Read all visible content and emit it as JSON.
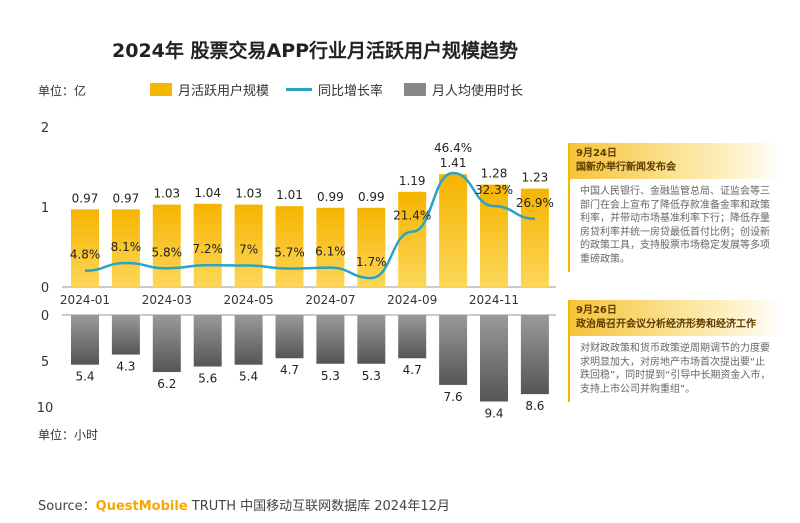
{
  "title": "2024年 股票交易APP行业月活跃用户规模趋势",
  "unit_top": "单位：亿",
  "unit_bottom": "单位：小时",
  "legend": [
    "月活跃用户规模",
    "同比增长率",
    "月人均使用时长"
  ],
  "notes": [
    {
      "date": "9月24日",
      "headline": "国新办举行新闻发布会",
      "body": "中国人民银行、金融监管总局、证监会等三部门在会上宣布了降低存款准备金率和政策利率，并带动市场基准利率下行；降低存量房贷利率并统一房贷最低首付比例；创设新的政策工具，支持股票市场稳定发展等多项重磅政策。"
    },
    {
      "date": "9月26日",
      "headline": "政治局召开会议分析经济形势和经济工作",
      "body": "对财政政策和货币政策逆周期调节的力度要求明显加大，对房地产市场首次提出要“止跌回稳”，同时提到“引导中长期资金入市，支持上市公司并购重组”。"
    }
  ],
  "source": {
    "label": "Source：",
    "brand": "QuestMobile",
    "rest": " TRUTH 中国移动互联网数据库 2024年12月"
  },
  "colors": {
    "mau": "#f5b800",
    "growth": "#2aa3c4",
    "time": "#777777"
  },
  "chart_data": {
    "type": "bar+line",
    "categories": [
      "2024-01",
      "2024-02",
      "2024-03",
      "2024-04",
      "2024-05",
      "2024-06",
      "2024-07",
      "2024-08",
      "2024-09",
      "2024-10",
      "2024-11",
      "2024-12"
    ],
    "x_tick_labels": [
      "2024-01",
      "2024-03",
      "2024-05",
      "2024-07",
      "2024-09",
      "2024-11"
    ],
    "series": [
      {
        "name": "月活跃用户规模",
        "type": "bar",
        "unit": "亿",
        "values": [
          0.97,
          0.97,
          1.03,
          1.04,
          1.03,
          1.01,
          0.99,
          0.99,
          1.19,
          1.41,
          1.28,
          1.23
        ]
      },
      {
        "name": "同比增长率",
        "type": "line",
        "unit": "%",
        "values": [
          4.8,
          8.1,
          5.8,
          7.2,
          7.0,
          5.7,
          6.1,
          1.7,
          21.4,
          46.4,
          32.3,
          26.9
        ]
      },
      {
        "name": "月人均使用时长",
        "type": "bar",
        "unit": "小时",
        "values": [
          5.4,
          4.3,
          6.2,
          5.6,
          5.4,
          4.7,
          5.3,
          5.3,
          4.7,
          7.6,
          9.4,
          8.6
        ]
      }
    ],
    "top_ylim": [
      0,
      2
    ],
    "top_yticks": [
      "0",
      "1",
      "2"
    ],
    "bottom_ylim": [
      0,
      10
    ],
    "bottom_yticks": [
      "0",
      "5",
      "10"
    ]
  }
}
